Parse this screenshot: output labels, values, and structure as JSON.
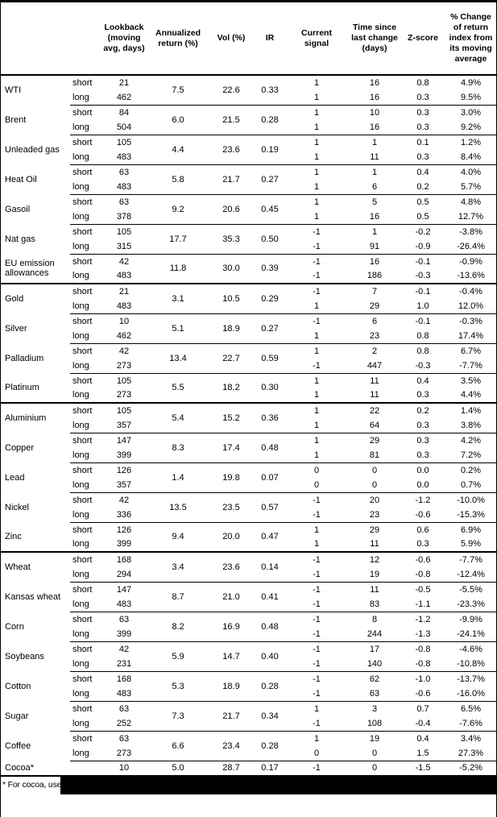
{
  "header": {
    "columns": [
      "",
      "",
      "Lookback (moving avg, days)",
      "Annualized return (%)",
      "Vol (%)",
      "IR",
      "Current signal",
      "Time since last change (days)",
      "Z-score",
      "% Change of return index from its moving average"
    ]
  },
  "sections": [
    {
      "commodities": [
        {
          "name": "WTI",
          "annualized_return": "7.5",
          "vol": "22.6",
          "ir": "0.33",
          "legs": [
            {
              "label": "short",
              "lookback": "21",
              "signal": "1",
              "time_since_change": "16",
              "z_score": "0.8",
              "pct_change": "4.9%"
            },
            {
              "label": "long",
              "lookback": "462",
              "signal": "1",
              "time_since_change": "16",
              "z_score": "0.3",
              "pct_change": "9.5%"
            }
          ]
        },
        {
          "name": "Brent",
          "annualized_return": "6.0",
          "vol": "21.5",
          "ir": "0.28",
          "legs": [
            {
              "label": "short",
              "lookback": "84",
              "signal": "1",
              "time_since_change": "10",
              "z_score": "0.3",
              "pct_change": "3.0%"
            },
            {
              "label": "long",
              "lookback": "504",
              "signal": "1",
              "time_since_change": "16",
              "z_score": "0.3",
              "pct_change": "9.2%"
            }
          ]
        },
        {
          "name": "Unleaded gas",
          "annualized_return": "4.4",
          "vol": "23.6",
          "ir": "0.19",
          "legs": [
            {
              "label": "short",
              "lookback": "105",
              "signal": "1",
              "time_since_change": "1",
              "z_score": "0.1",
              "pct_change": "1.2%"
            },
            {
              "label": "long",
              "lookback": "483",
              "signal": "1",
              "time_since_change": "11",
              "z_score": "0.3",
              "pct_change": "8.4%"
            }
          ]
        },
        {
          "name": "Heat Oil",
          "annualized_return": "5.8",
          "vol": "21.7",
          "ir": "0.27",
          "legs": [
            {
              "label": "short",
              "lookback": "63",
              "signal": "1",
              "time_since_change": "1",
              "z_score": "0.4",
              "pct_change": "4.0%"
            },
            {
              "label": "long",
              "lookback": "483",
              "signal": "1",
              "time_since_change": "6",
              "z_score": "0.2",
              "pct_change": "5.7%"
            }
          ]
        },
        {
          "name": "Gasoil",
          "annualized_return": "9.2",
          "vol": "20.6",
          "ir": "0.45",
          "legs": [
            {
              "label": "short",
              "lookback": "63",
              "signal": "1",
              "time_since_change": "5",
              "z_score": "0.5",
              "pct_change": "4.8%"
            },
            {
              "label": "long",
              "lookback": "378",
              "signal": "1",
              "time_since_change": "16",
              "z_score": "0.5",
              "pct_change": "12.7%"
            }
          ]
        },
        {
          "name": "Nat gas",
          "annualized_return": "17.7",
          "vol": "35.3",
          "ir": "0.50",
          "legs": [
            {
              "label": "short",
              "lookback": "105",
              "signal": "-1",
              "time_since_change": "1",
              "z_score": "-0.2",
              "pct_change": "-3.8%"
            },
            {
              "label": "long",
              "lookback": "315",
              "signal": "-1",
              "time_since_change": "91",
              "z_score": "-0.9",
              "pct_change": "-26.4%"
            }
          ]
        },
        {
          "name": "EU emission allowances",
          "annualized_return": "11.8",
          "vol": "30.0",
          "ir": "0.39",
          "legs": [
            {
              "label": "short",
              "lookback": "42",
              "signal": "-1",
              "time_since_change": "16",
              "z_score": "-0.1",
              "pct_change": "-0.9%"
            },
            {
              "label": "long",
              "lookback": "483",
              "signal": "-1",
              "time_since_change": "186",
              "z_score": "-0.3",
              "pct_change": "-13.6%"
            }
          ]
        }
      ]
    },
    {
      "commodities": [
        {
          "name": "Gold",
          "annualized_return": "3.1",
          "vol": "10.5",
          "ir": "0.29",
          "legs": [
            {
              "label": "short",
              "lookback": "21",
              "signal": "-1",
              "time_since_change": "7",
              "z_score": "-0.1",
              "pct_change": "-0.4%"
            },
            {
              "label": "long",
              "lookback": "483",
              "signal": "1",
              "time_since_change": "29",
              "z_score": "1.0",
              "pct_change": "12.0%"
            }
          ]
        },
        {
          "name": "Silver",
          "annualized_return": "5.1",
          "vol": "18.9",
          "ir": "0.27",
          "legs": [
            {
              "label": "short",
              "lookback": "10",
              "signal": "-1",
              "time_since_change": "6",
              "z_score": "-0.1",
              "pct_change": "-0.3%"
            },
            {
              "label": "long",
              "lookback": "462",
              "signal": "1",
              "time_since_change": "23",
              "z_score": "0.8",
              "pct_change": "17.4%"
            }
          ]
        },
        {
          "name": "Palladium",
          "annualized_return": "13.4",
          "vol": "22.7",
          "ir": "0.59",
          "legs": [
            {
              "label": "short",
              "lookback": "42",
              "signal": "1",
              "time_since_change": "2",
              "z_score": "0.8",
              "pct_change": "6.7%"
            },
            {
              "label": "long",
              "lookback": "273",
              "signal": "-1",
              "time_since_change": "447",
              "z_score": "-0.3",
              "pct_change": "-7.7%"
            }
          ]
        },
        {
          "name": "Platinum",
          "annualized_return": "5.5",
          "vol": "18.2",
          "ir": "0.30",
          "legs": [
            {
              "label": "short",
              "lookback": "105",
              "signal": "1",
              "time_since_change": "11",
              "z_score": "0.4",
              "pct_change": "3.5%"
            },
            {
              "label": "long",
              "lookback": "273",
              "signal": "1",
              "time_since_change": "11",
              "z_score": "0.3",
              "pct_change": "4.4%"
            }
          ]
        }
      ]
    },
    {
      "commodities": [
        {
          "name": "Aluminium",
          "annualized_return": "5.4",
          "vol": "15.2",
          "ir": "0.36",
          "legs": [
            {
              "label": "short",
              "lookback": "105",
              "signal": "1",
              "time_since_change": "22",
              "z_score": "0.2",
              "pct_change": "1.4%"
            },
            {
              "label": "long",
              "lookback": "357",
              "signal": "1",
              "time_since_change": "64",
              "z_score": "0.3",
              "pct_change": "3.8%"
            }
          ]
        },
        {
          "name": "Copper",
          "annualized_return": "8.3",
          "vol": "17.4",
          "ir": "0.48",
          "legs": [
            {
              "label": "short",
              "lookback": "147",
              "signal": "1",
              "time_since_change": "29",
              "z_score": "0.3",
              "pct_change": "4.2%"
            },
            {
              "label": "long",
              "lookback": "399",
              "signal": "1",
              "time_since_change": "81",
              "z_score": "0.3",
              "pct_change": "7.2%"
            }
          ]
        },
        {
          "name": "Lead",
          "annualized_return": "1.4",
          "vol": "19.8",
          "ir": "0.07",
          "legs": [
            {
              "label": "short",
              "lookback": "126",
              "signal": "0",
              "time_since_change": "0",
              "z_score": "0.0",
              "pct_change": "0.2%"
            },
            {
              "label": "long",
              "lookback": "357",
              "signal": "0",
              "time_since_change": "0",
              "z_score": "0.0",
              "pct_change": "0.7%"
            }
          ]
        },
        {
          "name": "Nickel",
          "annualized_return": "13.5",
          "vol": "23.5",
          "ir": "0.57",
          "legs": [
            {
              "label": "short",
              "lookback": "42",
              "signal": "-1",
              "time_since_change": "20",
              "z_score": "-1.2",
              "pct_change": "-10.0%"
            },
            {
              "label": "long",
              "lookback": "336",
              "signal": "-1",
              "time_since_change": "23",
              "z_score": "-0.6",
              "pct_change": "-15.3%"
            }
          ]
        },
        {
          "name": "Zinc",
          "annualized_return": "9.4",
          "vol": "20.0",
          "ir": "0.47",
          "legs": [
            {
              "label": "short",
              "lookback": "126",
              "signal": "1",
              "time_since_change": "29",
              "z_score": "0.6",
              "pct_change": "6.9%"
            },
            {
              "label": "long",
              "lookback": "399",
              "signal": "1",
              "time_since_change": "11",
              "z_score": "0.3",
              "pct_change": "5.9%"
            }
          ]
        }
      ]
    },
    {
      "commodities": [
        {
          "name": "Wheat",
          "annualized_return": "3.4",
          "vol": "23.6",
          "ir": "0.14",
          "legs": [
            {
              "label": "short",
              "lookback": "168",
              "signal": "-1",
              "time_since_change": "12",
              "z_score": "-0.6",
              "pct_change": "-7.7%"
            },
            {
              "label": "long",
              "lookback": "294",
              "signal": "-1",
              "time_since_change": "19",
              "z_score": "-0.8",
              "pct_change": "-12.4%"
            }
          ]
        },
        {
          "name": "Kansas wheat",
          "annualized_return": "8.7",
          "vol": "21.0",
          "ir": "0.41",
          "legs": [
            {
              "label": "short",
              "lookback": "147",
              "signal": "-1",
              "time_since_change": "11",
              "z_score": "-0.5",
              "pct_change": "-5.5%"
            },
            {
              "label": "long",
              "lookback": "483",
              "signal": "-1",
              "time_since_change": "83",
              "z_score": "-1.1",
              "pct_change": "-23.3%"
            }
          ]
        },
        {
          "name": "Corn",
          "annualized_return": "8.2",
          "vol": "16.9",
          "ir": "0.48",
          "legs": [
            {
              "label": "short",
              "lookback": "63",
              "signal": "-1",
              "time_since_change": "8",
              "z_score": "-1.2",
              "pct_change": "-9.9%"
            },
            {
              "label": "long",
              "lookback": "399",
              "signal": "-1",
              "time_since_change": "244",
              "z_score": "-1.3",
              "pct_change": "-24.1%"
            }
          ]
        },
        {
          "name": "Soybeans",
          "annualized_return": "5.9",
          "vol": "14.7",
          "ir": "0.40",
          "legs": [
            {
              "label": "short",
              "lookback": "42",
              "signal": "-1",
              "time_since_change": "17",
              "z_score": "-0.8",
              "pct_change": "-4.6%"
            },
            {
              "label": "long",
              "lookback": "231",
              "signal": "-1",
              "time_since_change": "140",
              "z_score": "-0.8",
              "pct_change": "-10.8%"
            }
          ]
        },
        {
          "name": "Cotton",
          "annualized_return": "5.3",
          "vol": "18.9",
          "ir": "0.28",
          "legs": [
            {
              "label": "short",
              "lookback": "168",
              "signal": "-1",
              "time_since_change": "62",
              "z_score": "-1.0",
              "pct_change": "-13.7%"
            },
            {
              "label": "long",
              "lookback": "483",
              "signal": "-1",
              "time_since_change": "63",
              "z_score": "-0.6",
              "pct_change": "-16.0%"
            }
          ]
        },
        {
          "name": "Sugar",
          "annualized_return": "7.3",
          "vol": "21.7",
          "ir": "0.34",
          "legs": [
            {
              "label": "short",
              "lookback": "63",
              "signal": "1",
              "time_since_change": "3",
              "z_score": "0.7",
              "pct_change": "6.5%"
            },
            {
              "label": "long",
              "lookback": "252",
              "signal": "-1",
              "time_since_change": "108",
              "z_score": "-0.4",
              "pct_change": "-7.6%"
            }
          ]
        },
        {
          "name": "Coffee",
          "annualized_return": "6.6",
          "vol": "23.4",
          "ir": "0.28",
          "legs": [
            {
              "label": "short",
              "lookback": "63",
              "signal": "1",
              "time_since_change": "19",
              "z_score": "0.4",
              "pct_change": "3.4%"
            },
            {
              "label": "long",
              "lookback": "273",
              "signal": "0",
              "time_since_change": "0",
              "z_score": "1.5",
              "pct_change": "27.3%"
            }
          ]
        },
        {
          "name": "Cocoa*",
          "annualized_return": "5.0",
          "vol": "28.7",
          "ir": "0.17",
          "legs": [
            {
              "label": "",
              "lookback": "10",
              "signal": "-1",
              "time_since_change": "0",
              "z_score": "-1.5",
              "pct_change": "-5.2%"
            }
          ]
        }
      ]
    }
  ],
  "footnote": "* For cocoa, uses o",
  "colors": {
    "text": "#000000",
    "background": "#ffffff",
    "rule": "#000000",
    "redaction": "#000000"
  }
}
